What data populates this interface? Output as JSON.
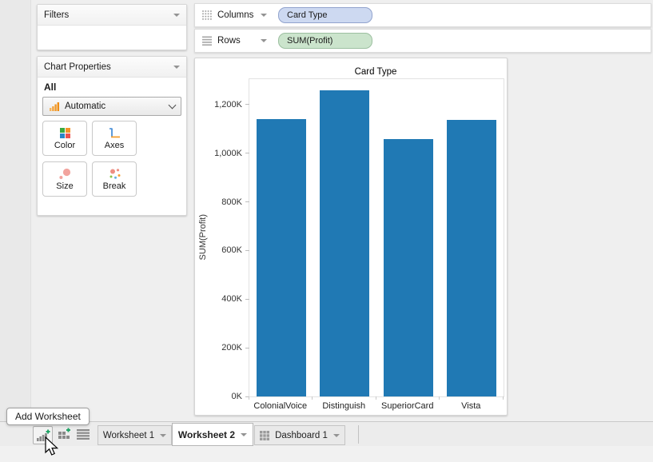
{
  "left_panel": {
    "filters": {
      "title": "Filters"
    },
    "chart_properties": {
      "title": "Chart Properties",
      "scope": "All",
      "mark_type": "Automatic",
      "buttons": [
        {
          "label": "Color",
          "icon": "color-swatches-icon"
        },
        {
          "label": "Axes",
          "icon": "axes-icon"
        },
        {
          "label": "Size",
          "icon": "size-circles-icon"
        },
        {
          "label": "Break",
          "icon": "break-dots-icon"
        }
      ]
    }
  },
  "shelves": {
    "columns": {
      "label": "Columns",
      "pill": "Card Type",
      "pill_bg": "#cdd9f1",
      "pill_border": "#91a3cd"
    },
    "rows": {
      "label": "Rows",
      "pill": "SUM(Profit)",
      "pill_bg": "#cbe4cc",
      "pill_border": "#9cbfa0"
    }
  },
  "chart_data": {
    "type": "bar",
    "title": "Card Type",
    "xlabel": "",
    "ylabel": "SUM(Profit)",
    "categories": [
      "ColonialVoice",
      "Distinguish",
      "SuperiorCard",
      "Vista"
    ],
    "values": [
      1140000,
      1258000,
      1057000,
      1136000
    ],
    "ylim": [
      0,
      1305000
    ],
    "axis_max": 1305000,
    "y_ticks": [
      {
        "value": 0,
        "label": "0K"
      },
      {
        "value": 200000,
        "label": "200K"
      },
      {
        "value": 400000,
        "label": "400K"
      },
      {
        "value": 600000,
        "label": "600K"
      },
      {
        "value": 800000,
        "label": "800K"
      },
      {
        "value": 1000000,
        "label": "1,000K"
      },
      {
        "value": 1200000,
        "label": "1,200K"
      }
    ],
    "bar_color": "#2079b4",
    "grid": false,
    "legend": false
  },
  "tabbar": {
    "tabs": [
      {
        "label": "Worksheet 1",
        "active": false
      },
      {
        "label": "Worksheet 2",
        "active": true
      },
      {
        "label": "Dashboard 1",
        "active": false,
        "icon": "dashboard-grid-icon"
      }
    ],
    "tool_icons": [
      "new-worksheet-icon",
      "new-dashboard-icon",
      "sheet-list-icon"
    ]
  },
  "tooltip": {
    "text": "Add Worksheet"
  }
}
